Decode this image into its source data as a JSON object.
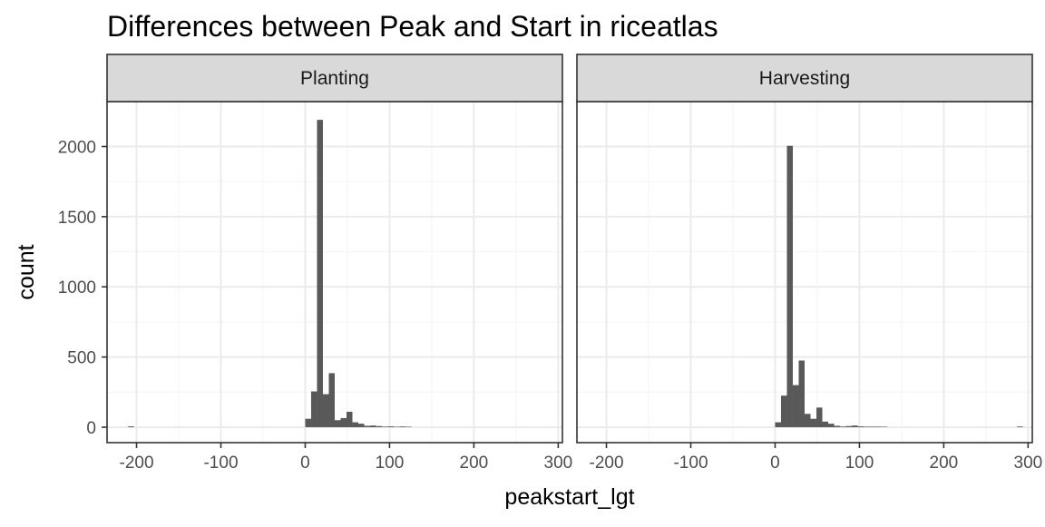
{
  "chart_data": {
    "type": "bar",
    "title": "Differences between Peak and Start in riceatlas",
    "xlabel": "peakstart_lgt",
    "ylabel": "count",
    "xlim": [
      -235,
      305
    ],
    "ylim": [
      -110,
      2320
    ],
    "x_breaks": [
      -200,
      -100,
      0,
      100,
      200,
      300
    ],
    "x_tick_labels": [
      "-200",
      "-100",
      "0",
      "100",
      "200",
      "300"
    ],
    "y_breaks": [
      0,
      500,
      1000,
      1500,
      2000
    ],
    "y_tick_labels": [
      "0",
      "500",
      "1000",
      "1500",
      "2000"
    ],
    "bin_width": 7,
    "grid": true,
    "colors": {
      "bar": "#595959",
      "strip_fill": "#d9d9d9",
      "panel_border": "#333333",
      "grid_major": "#ebebeb",
      "grid_minor": "#f5f5f5"
    },
    "facets": [
      {
        "name": "Planting",
        "bins": [
          {
            "x": -210,
            "count": 6
          },
          {
            "x": 0,
            "count": 60
          },
          {
            "x": 7,
            "count": 255
          },
          {
            "x": 14,
            "count": 2190
          },
          {
            "x": 21,
            "count": 235
          },
          {
            "x": 28,
            "count": 385
          },
          {
            "x": 35,
            "count": 50
          },
          {
            "x": 42,
            "count": 65
          },
          {
            "x": 49,
            "count": 110
          },
          {
            "x": 56,
            "count": 35
          },
          {
            "x": 63,
            "count": 25
          },
          {
            "x": 70,
            "count": 10
          },
          {
            "x": 77,
            "count": 12
          },
          {
            "x": 84,
            "count": 8
          },
          {
            "x": 91,
            "count": 4
          },
          {
            "x": 98,
            "count": 6
          },
          {
            "x": 105,
            "count": 3
          },
          {
            "x": 112,
            "count": 5
          },
          {
            "x": 119,
            "count": 3
          }
        ]
      },
      {
        "name": "Harvesting",
        "bins": [
          {
            "x": 0,
            "count": 35
          },
          {
            "x": 7,
            "count": 225
          },
          {
            "x": 14,
            "count": 2005
          },
          {
            "x": 21,
            "count": 300
          },
          {
            "x": 28,
            "count": 475
          },
          {
            "x": 35,
            "count": 95
          },
          {
            "x": 42,
            "count": 60
          },
          {
            "x": 49,
            "count": 140
          },
          {
            "x": 56,
            "count": 40
          },
          {
            "x": 63,
            "count": 25
          },
          {
            "x": 70,
            "count": 10
          },
          {
            "x": 77,
            "count": 5
          },
          {
            "x": 84,
            "count": 8
          },
          {
            "x": 91,
            "count": 12
          },
          {
            "x": 98,
            "count": 6
          },
          {
            "x": 105,
            "count": 4
          },
          {
            "x": 112,
            "count": 4
          },
          {
            "x": 119,
            "count": 4
          },
          {
            "x": 126,
            "count": 3
          },
          {
            "x": 287,
            "count": 5
          }
        ]
      }
    ]
  }
}
